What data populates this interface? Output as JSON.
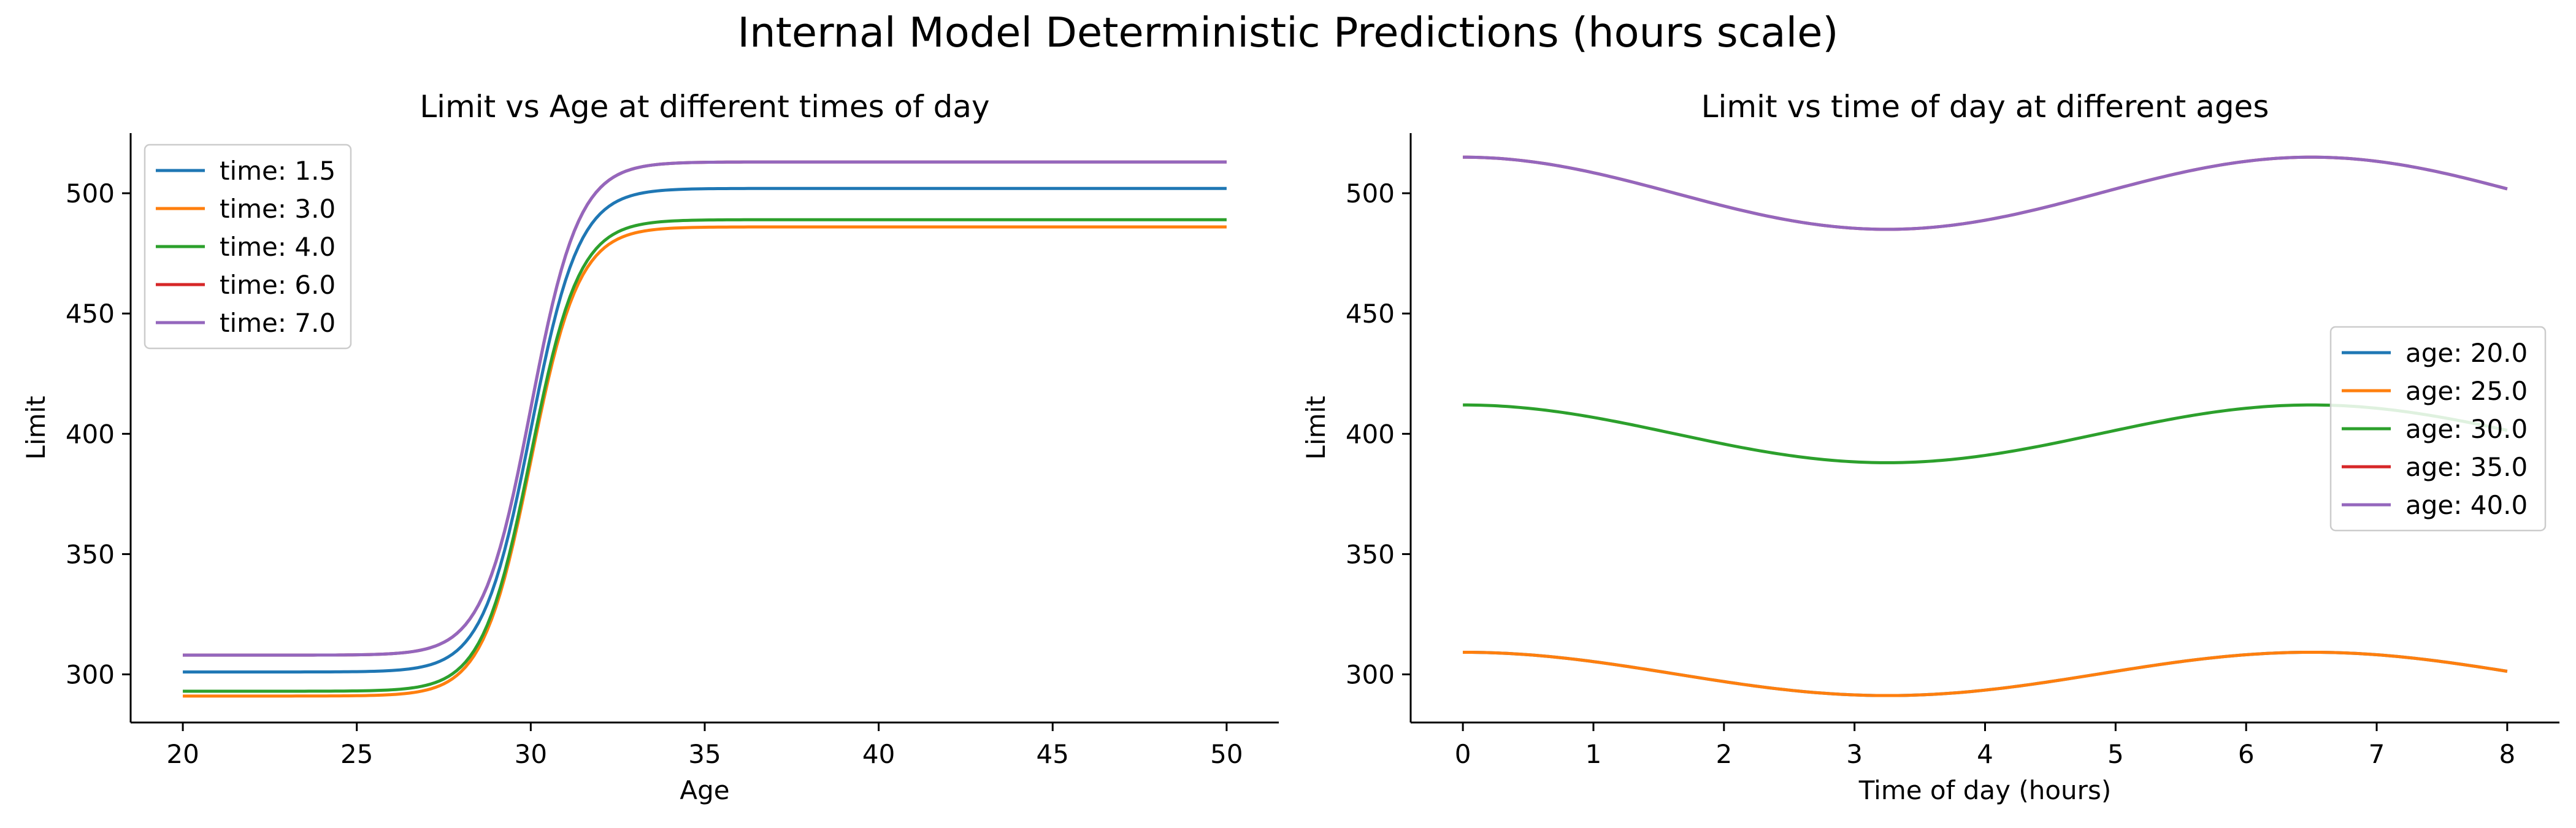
{
  "figure": {
    "title": "Internal Model Deterministic Predictions (hours scale)"
  },
  "chart_data": [
    {
      "type": "line",
      "title": "Limit vs Age at different times of day",
      "xlabel": "Age",
      "ylabel": "Limit",
      "xlim": [
        18.5,
        51.5
      ],
      "ylim": [
        280,
        525
      ],
      "xticks": [
        20,
        25,
        30,
        35,
        40,
        45,
        50
      ],
      "yticks": [
        300,
        350,
        400,
        450,
        500
      ],
      "grid": false,
      "legend_position": "upper left",
      "curve": {
        "kind": "logistic",
        "x_from": 20,
        "x_to": 50,
        "midpoint": 30,
        "steepness": 1.45
      },
      "series": [
        {
          "name": "time: 1.5",
          "color": "#1f77b4",
          "low": 301,
          "high": 502
        },
        {
          "name": "time: 3.0",
          "color": "#ff7f0e",
          "low": 291,
          "high": 486
        },
        {
          "name": "time: 4.0",
          "color": "#2ca02c",
          "low": 293,
          "high": 489
        },
        {
          "name": "time: 6.0",
          "color": "#d62728",
          "low": 308,
          "high": 513
        },
        {
          "name": "time: 7.0",
          "color": "#9467bd",
          "low": 308,
          "high": 513
        }
      ]
    },
    {
      "type": "line",
      "title": "Limit vs time of day at different ages",
      "xlabel": "Time of day (hours)",
      "ylabel": "Limit",
      "xlim": [
        -0.4,
        8.4
      ],
      "ylim": [
        280,
        525
      ],
      "xticks": [
        0,
        1,
        2,
        3,
        4,
        5,
        6,
        7,
        8
      ],
      "yticks": [
        300,
        350,
        400,
        450,
        500
      ],
      "grid": false,
      "legend_position": "center right",
      "curve": {
        "kind": "cosine",
        "x_from": 0,
        "x_to": 8,
        "period": 6.5
      },
      "series": [
        {
          "name": "age: 20.0",
          "color": "#1f77b4",
          "mean": 300.2,
          "amplitude": 9.0
        },
        {
          "name": "age: 25.0",
          "color": "#ff7f0e",
          "mean": 300.2,
          "amplitude": 9.0
        },
        {
          "name": "age: 30.0",
          "color": "#2ca02c",
          "mean": 400.0,
          "amplitude": 12.0
        },
        {
          "name": "age: 35.0",
          "color": "#d62728",
          "mean": 500.0,
          "amplitude": 15.0
        },
        {
          "name": "age: 40.0",
          "color": "#9467bd",
          "mean": 500.0,
          "amplitude": 15.0
        }
      ]
    }
  ]
}
